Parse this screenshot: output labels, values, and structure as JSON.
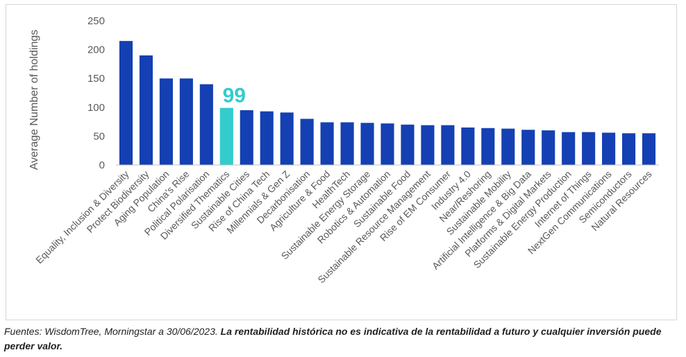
{
  "chart_data": {
    "type": "bar",
    "ylabel": "Average Number of holdings",
    "xlabel": "",
    "ylim": [
      0,
      250
    ],
    "yticks": [
      0,
      50,
      100,
      150,
      200,
      250
    ],
    "categories": [
      "Equality, Inclusion & Diversity",
      "Protect Biodiversity",
      "Aging Population",
      "China's Rise",
      "Political Polarisation",
      "Diversified Thematics",
      "Sustainable Cities",
      "Rise of China Tech",
      "Millennials & Gen Z",
      "Decarbonisation",
      "Agriculture & Food",
      "HealthTech",
      "Sustainable Energy Storage",
      "Robotics & Automation",
      "Sustainable Food",
      "Sustainable Resource Management",
      "Rise of EM Consumer",
      "Industry 4.0",
      "Near/Reshoring",
      "Sustainable Mobility",
      "Artificial Intelligence & Big Data",
      "Platforms & Digital Markets",
      "Sustainable Energy Production",
      "Internet of Things",
      "NextGen Communications",
      "Semiconductors",
      "Natural Resources"
    ],
    "values": [
      215,
      190,
      150,
      150,
      140,
      99,
      95,
      93,
      91,
      80,
      74,
      74,
      73,
      72,
      70,
      69,
      69,
      65,
      64,
      63,
      61,
      60,
      57,
      57,
      56,
      55,
      55
    ],
    "highlight_index": 5,
    "highlight_label": "99",
    "colors": {
      "bar": "#1440B3",
      "highlight": "#33CCCC",
      "axis": "#BFBFBF",
      "text": "#595959"
    }
  },
  "footnote": {
    "source": "Fuentes: WisdomTree, Morningstar a 30/06/2023.",
    "disclaimer": "La rentabilidad histórica no es indicativa de la rentabilidad a futuro y cualquier inversión puede perder valor."
  }
}
